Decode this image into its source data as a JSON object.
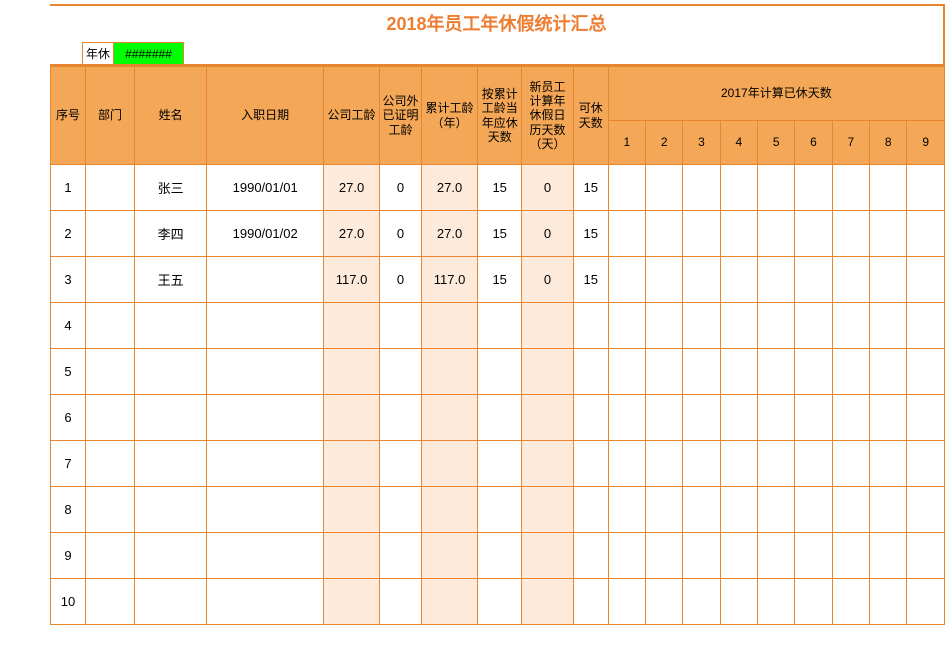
{
  "colors": {
    "border": "#e8862f",
    "header_bg": "#f4a756",
    "tint_bg": "#fdeadb",
    "error_bg": "#00ff00",
    "title_color": "#ed7d31",
    "background": "#ffffff"
  },
  "title": {
    "text": "2018年员工年休假统计汇总",
    "fontsize": 18
  },
  "toprow": {
    "label": "年休",
    "error": "#######"
  },
  "headers": {
    "seq": "序号",
    "dept": "部门",
    "name": "姓名",
    "hire": "入职日期",
    "company_age": "公司工龄",
    "external_age": "公司外已证明工龄",
    "total_age": "累计工龄（年）",
    "due_days": "按累计工龄当年应休天数",
    "new_emp_days": "新员工计算年休假日历天数（天）",
    "avail_days": "可休天数",
    "used_group": "2017年计算已休天数",
    "months": [
      "1",
      "2",
      "3",
      "4",
      "5",
      "6",
      "7",
      "8",
      "9"
    ]
  },
  "rows": [
    {
      "seq": "1",
      "dept": "",
      "name": "张三",
      "hire": "1990/01/01",
      "company_age": "27.0",
      "external_age": "0",
      "total_age": "27.0",
      "due_days": "15",
      "new_emp_days": "0",
      "avail_days": "15",
      "m": [
        "",
        "",
        "",
        "",
        "",
        "",
        "",
        "",
        ""
      ]
    },
    {
      "seq": "2",
      "dept": "",
      "name": "李四",
      "hire": "1990/01/02",
      "company_age": "27.0",
      "external_age": "0",
      "total_age": "27.0",
      "due_days": "15",
      "new_emp_days": "0",
      "avail_days": "15",
      "m": [
        "",
        "",
        "",
        "",
        "",
        "",
        "",
        "",
        ""
      ]
    },
    {
      "seq": "3",
      "dept": "",
      "name": "王五",
      "hire": "",
      "company_age": "117.0",
      "external_age": "0",
      "total_age": "117.0",
      "due_days": "15",
      "new_emp_days": "0",
      "avail_days": "15",
      "m": [
        "",
        "",
        "",
        "",
        "",
        "",
        "",
        "",
        ""
      ]
    },
    {
      "seq": "4",
      "dept": "",
      "name": "",
      "hire": "",
      "company_age": "",
      "external_age": "",
      "total_age": "",
      "due_days": "",
      "new_emp_days": "",
      "avail_days": "",
      "m": [
        "",
        "",
        "",
        "",
        "",
        "",
        "",
        "",
        ""
      ]
    },
    {
      "seq": "5",
      "dept": "",
      "name": "",
      "hire": "",
      "company_age": "",
      "external_age": "",
      "total_age": "",
      "due_days": "",
      "new_emp_days": "",
      "avail_days": "",
      "m": [
        "",
        "",
        "",
        "",
        "",
        "",
        "",
        "",
        ""
      ]
    },
    {
      "seq": "6",
      "dept": "",
      "name": "",
      "hire": "",
      "company_age": "",
      "external_age": "",
      "total_age": "",
      "due_days": "",
      "new_emp_days": "",
      "avail_days": "",
      "m": [
        "",
        "",
        "",
        "",
        "",
        "",
        "",
        "",
        ""
      ]
    },
    {
      "seq": "7",
      "dept": "",
      "name": "",
      "hire": "",
      "company_age": "",
      "external_age": "",
      "total_age": "",
      "due_days": "",
      "new_emp_days": "",
      "avail_days": "",
      "m": [
        "",
        "",
        "",
        "",
        "",
        "",
        "",
        "",
        ""
      ]
    },
    {
      "seq": "8",
      "dept": "",
      "name": "",
      "hire": "",
      "company_age": "",
      "external_age": "",
      "total_age": "",
      "due_days": "",
      "new_emp_days": "",
      "avail_days": "",
      "m": [
        "",
        "",
        "",
        "",
        "",
        "",
        "",
        "",
        ""
      ]
    },
    {
      "seq": "9",
      "dept": "",
      "name": "",
      "hire": "",
      "company_age": "",
      "external_age": "",
      "total_age": "",
      "due_days": "",
      "new_emp_days": "",
      "avail_days": "",
      "m": [
        "",
        "",
        "",
        "",
        "",
        "",
        "",
        "",
        ""
      ]
    },
    {
      "seq": "10",
      "dept": "",
      "name": "",
      "hire": "",
      "company_age": "",
      "external_age": "",
      "total_age": "",
      "due_days": "",
      "new_emp_days": "",
      "avail_days": "",
      "m": [
        "",
        "",
        "",
        "",
        "",
        "",
        "",
        "",
        ""
      ]
    }
  ]
}
